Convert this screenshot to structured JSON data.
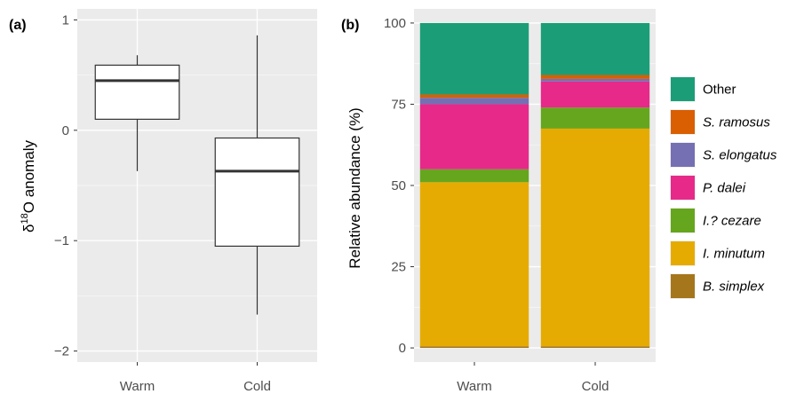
{
  "chart_data": [
    {
      "type": "box",
      "panel_label": "(a)",
      "ylabel": {
        "prefix": "δ",
        "sup": "18",
        "suffix": "O anomaly"
      },
      "categories": [
        "Warm",
        "Cold"
      ],
      "ylim": [
        -2.1,
        1.1
      ],
      "yticks": [
        -2,
        -1,
        0,
        1
      ],
      "ytick_labels": [
        "−2",
        "−1",
        "0",
        "1"
      ],
      "grid": true,
      "boxes": [
        {
          "category": "Warm",
          "whisker_low": -0.37,
          "q1": 0.1,
          "median": 0.45,
          "q3": 0.59,
          "whisker_high": 0.68
        },
        {
          "category": "Cold",
          "whisker_low": -1.67,
          "q1": -1.05,
          "median": -0.37,
          "q3": -0.07,
          "whisker_high": 0.86
        }
      ]
    },
    {
      "type": "bar",
      "stacked": true,
      "panel_label": "(b)",
      "ylabel": "Relative abundance (%)",
      "categories": [
        "Warm",
        "Cold"
      ],
      "ylim": [
        0,
        100
      ],
      "yticks": [
        0,
        25,
        50,
        75,
        100
      ],
      "grid": true,
      "legend_position": "right",
      "series": [
        {
          "name": "B. simplex",
          "color": "#a6761d",
          "italic": true,
          "values": [
            0.5,
            0.5
          ]
        },
        {
          "name": "I. minutum",
          "color": "#e6ab02",
          "italic": true,
          "values": [
            50.5,
            67
          ]
        },
        {
          "name": "I.? cezare",
          "color": "#66a61e",
          "italic": true,
          "values": [
            4,
            6.5
          ]
        },
        {
          "name": "P. dalei",
          "color": "#e7298a",
          "italic": true,
          "values": [
            20,
            8
          ]
        },
        {
          "name": "S. elongatus",
          "color": "#7570b3",
          "italic": true,
          "values": [
            2,
            0.8
          ]
        },
        {
          "name": "S. ramosus",
          "color": "#d95f02",
          "italic": true,
          "values": [
            1,
            1.2
          ]
        },
        {
          "name": "Other",
          "color": "#1b9e77",
          "italic": false,
          "values": [
            22,
            16
          ]
        }
      ],
      "legend_order": [
        "Other",
        "S. ramosus",
        "S. elongatus",
        "P. dalei",
        "I.? cezare",
        "I. minutum",
        "B. simplex"
      ]
    }
  ]
}
